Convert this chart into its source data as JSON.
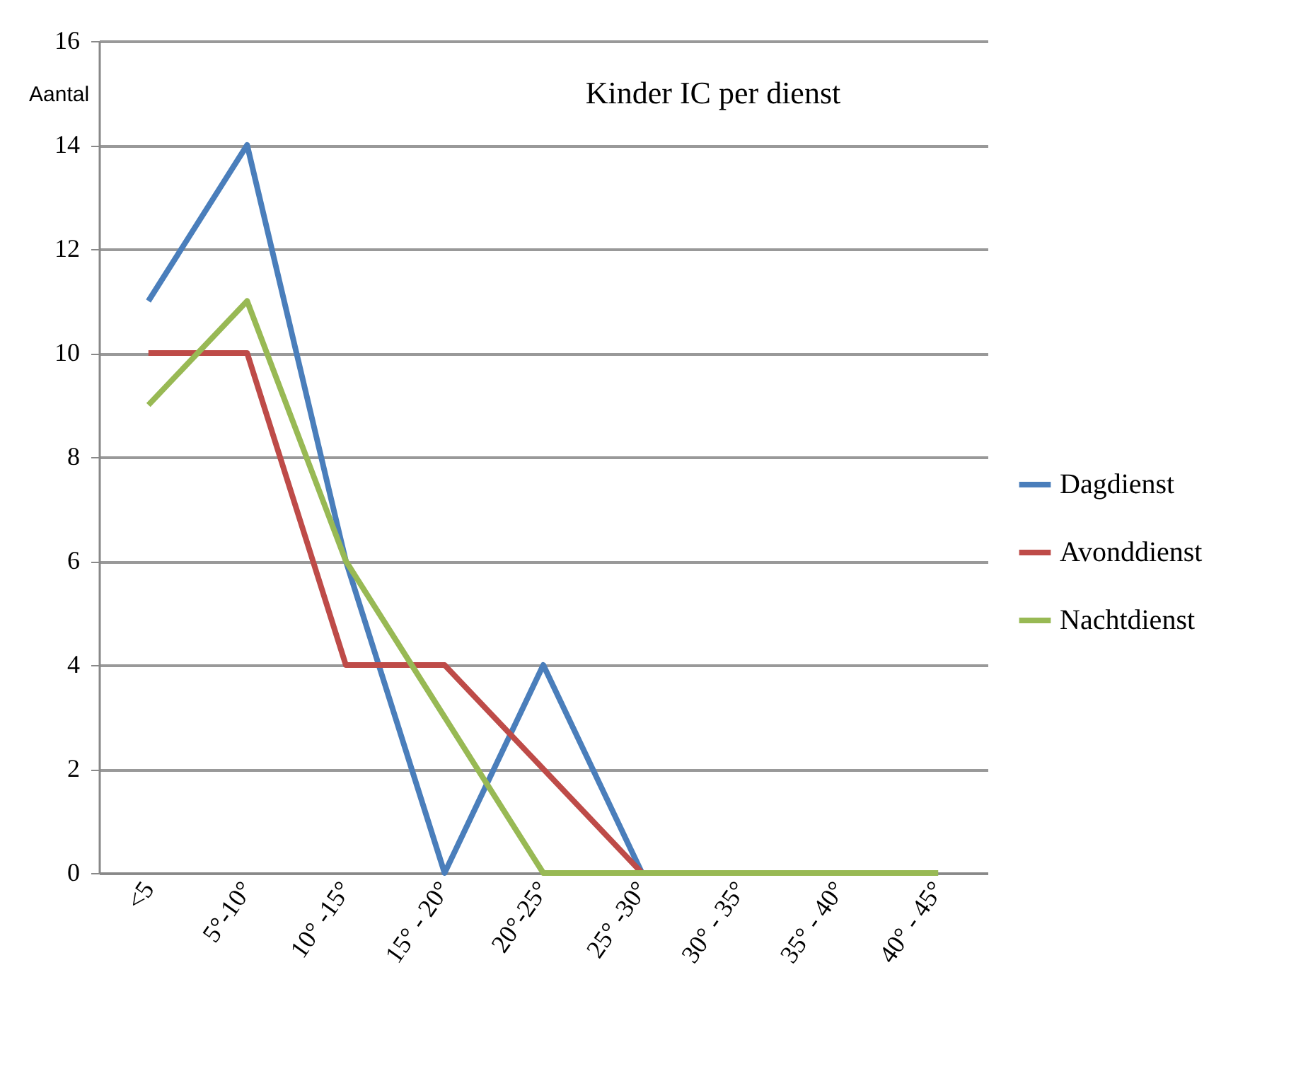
{
  "chart_data": {
    "type": "line",
    "title": "Kinder IC per dienst",
    "ylabel": "Aantal",
    "categories": [
      "<5",
      "5°-10°",
      "10° -15°",
      "15° - 20°",
      "20°-25°",
      "25° -30°",
      "30° - 35°",
      "35° - 40°",
      "40° - 45°"
    ],
    "series": [
      {
        "name": "Dagdienst",
        "color": "#4a7ebb",
        "values": [
          11,
          14,
          6,
          0,
          4,
          0,
          null,
          null,
          null
        ]
      },
      {
        "name": "Avonddienst",
        "color": "#be4b48",
        "values": [
          10,
          10,
          4,
          4,
          2,
          0,
          null,
          null,
          null
        ]
      },
      {
        "name": "Nachtdienst",
        "color": "#98b954",
        "values": [
          9,
          11,
          6,
          3,
          0,
          0,
          0,
          0,
          0
        ]
      }
    ],
    "ylim": [
      0,
      16
    ],
    "yticks": [
      0,
      2,
      4,
      6,
      8,
      10,
      12,
      14,
      16
    ],
    "grid": "y",
    "legend": "right",
    "marker": "none",
    "line_style": "solid"
  }
}
